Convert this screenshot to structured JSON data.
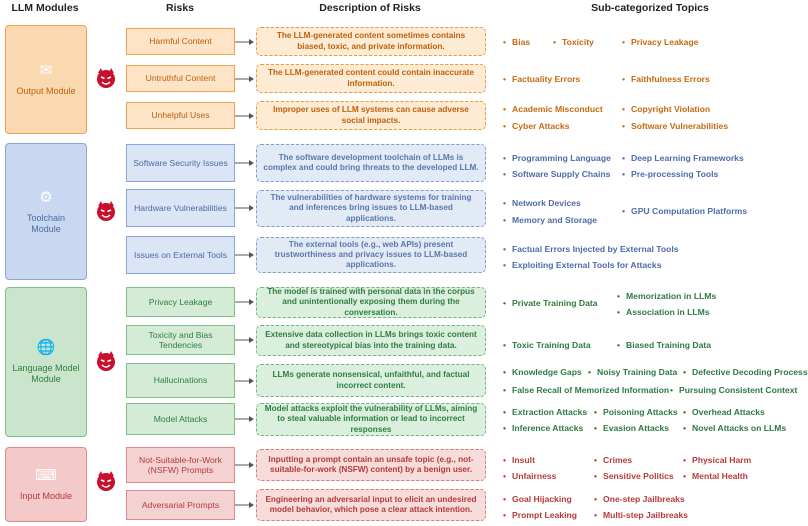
{
  "headers": {
    "modules": "LLM Modules",
    "risks": "Risks",
    "description": "Description of Risks",
    "topics": "Sub-categorized Topics"
  },
  "modules": {
    "output": "Output Module",
    "toolchain": "Toolchain Module",
    "language": "Language Model Module",
    "input": "Input Module"
  },
  "rows": {
    "harmful": {
      "risk": "Harmful Content",
      "desc": "The LLM-generated content sometimes contains biased, toxic, and private information.",
      "topics": [
        "Bias",
        "Toxicity",
        "Privacy Leakage"
      ]
    },
    "untruthful": {
      "risk": "Untruthful Content",
      "desc": "The LLM-generated content could contain inaccurate information.",
      "topics": [
        "Factuality Errors",
        "Faithfulness Errors"
      ]
    },
    "unhelpful": {
      "risk": "Unhelpful Uses",
      "desc": "Improper uses of LLM systems can cause adverse social impacts.",
      "topics": [
        "Academic Misconduct",
        "Copyright Violation",
        "Cyber Attacks",
        "Software Vulnerabilities"
      ]
    },
    "software": {
      "risk": "Software Security Issues",
      "desc": "The software development toolchain of LLMs is complex and could bring threats to the developed LLM.",
      "topics": [
        "Programming Language",
        "Deep Learning Frameworks",
        "Software Supply Chains",
        "Pre-processing Tools"
      ]
    },
    "hardware": {
      "risk": "Hardware Vulnerabilities",
      "desc": "The vulnerabilities of hardware systems for training and inferences bring issues to LLM-based applications.",
      "topics": [
        "Network Devices",
        "GPU Computation Platforms",
        "Memory and Storage"
      ]
    },
    "external": {
      "risk": "Issues on External Tools",
      "desc": "The external tools (e.g., web APIs) present trustworthiness and privacy issues to LLM-based applications.",
      "topics": [
        "Factual Errors Injected by External Tools",
        "Exploiting External Tools for Attacks"
      ]
    },
    "privacy": {
      "risk": "Privacy Leakage",
      "desc": "The model is trained with personal data in the corpus and unintentionally exposing them during the conversation.",
      "topics": [
        "Private Training Data",
        "Memorization in LLMs",
        "Association in LLMs"
      ]
    },
    "toxicity": {
      "risk": "Toxicity and Bias Tendencies",
      "desc": "Extensive data collection in LLMs brings toxic content and stereotypical bias into the training data.",
      "topics": [
        "Toxic Training Data",
        "Biased Training Data"
      ]
    },
    "hallucinations": {
      "risk": "Hallucinations",
      "desc": "LLMs generate nonsensical, unfaithful, and factual incorrect content.",
      "topics": [
        "Knowledge Gaps",
        "Noisy Training Data",
        "Defective Decoding Process",
        "False Recall of Memorized Information",
        "Pursuing Consistent Context"
      ]
    },
    "model_attacks": {
      "risk": "Model Attacks",
      "desc": "Model attacks exploit the vulnerability of LLMs, aiming to steal valuable information or lead to incorrect responses",
      "topics": [
        "Extraction Attacks",
        "Poisoning Attacks",
        "Overhead Attacks",
        "Inference Attacks",
        "Evasion Attacks",
        "Novel Attacks on LLMs"
      ]
    },
    "nsfw": {
      "risk": "Not-Suitable-for-Work (NSFW) Prompts",
      "desc": "Inputting a prompt contain an unsafe topic (e.g., not-suitable-for-work (NSFW) content) by a benign user.",
      "topics": [
        "Insult",
        "Crimes",
        "Physical Harm",
        "Unfairness",
        "Sensitive Politics",
        "Mental Health"
      ]
    },
    "adversarial": {
      "risk": "Adversarial Prompts",
      "desc": "Engineering an adversarial input to elicit an undesired model behavior, which pose a clear attack intention.",
      "topics": [
        "Goal Hijacking",
        "One-step Jailbreaks",
        "Prompt Leaking",
        "Multi-step Jailbreaks"
      ]
    }
  },
  "icons": {
    "module_icons": [
      "output-icon",
      "gear-icon",
      "globe-icon",
      "input-icon"
    ],
    "risk_marker": "devil-icon"
  },
  "colors": {
    "output": "#f0a452",
    "toolchain": "#8aa6d4",
    "language": "#7fbf8a",
    "input": "#dc8a8a"
  }
}
